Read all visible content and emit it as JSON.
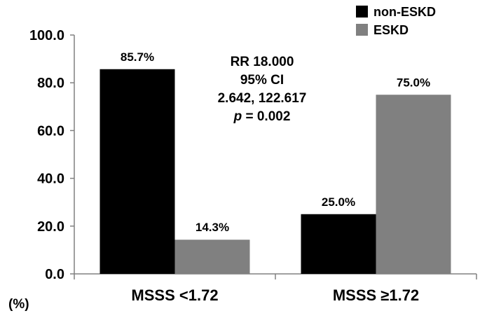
{
  "chart_data": {
    "type": "bar",
    "categories": [
      "MSSS <1.72",
      "MSSS ≥1.72"
    ],
    "series": [
      {
        "name": "non-ESKD",
        "values": [
          85.7,
          25.0
        ],
        "labels": [
          "85.7%",
          "25.0%"
        ],
        "color": "#000000"
      },
      {
        "name": "ESKD",
        "values": [
          14.3,
          75.0
        ],
        "labels": [
          "14.3%",
          "75.0%"
        ],
        "color": "#808080"
      }
    ],
    "ylim": [
      0,
      100
    ],
    "yticks": [
      "0.0",
      "20.0",
      "40.0",
      "60.0",
      "80.0",
      "100.0"
    ],
    "ylabel": "(%)",
    "grid": false,
    "legend": "top-right",
    "annotation": {
      "line1": "RR 18.000",
      "line2": "95% CI",
      "line3": "2.642, 122.617",
      "p_symbol": "p",
      "p_rest": " = 0.002"
    }
  }
}
